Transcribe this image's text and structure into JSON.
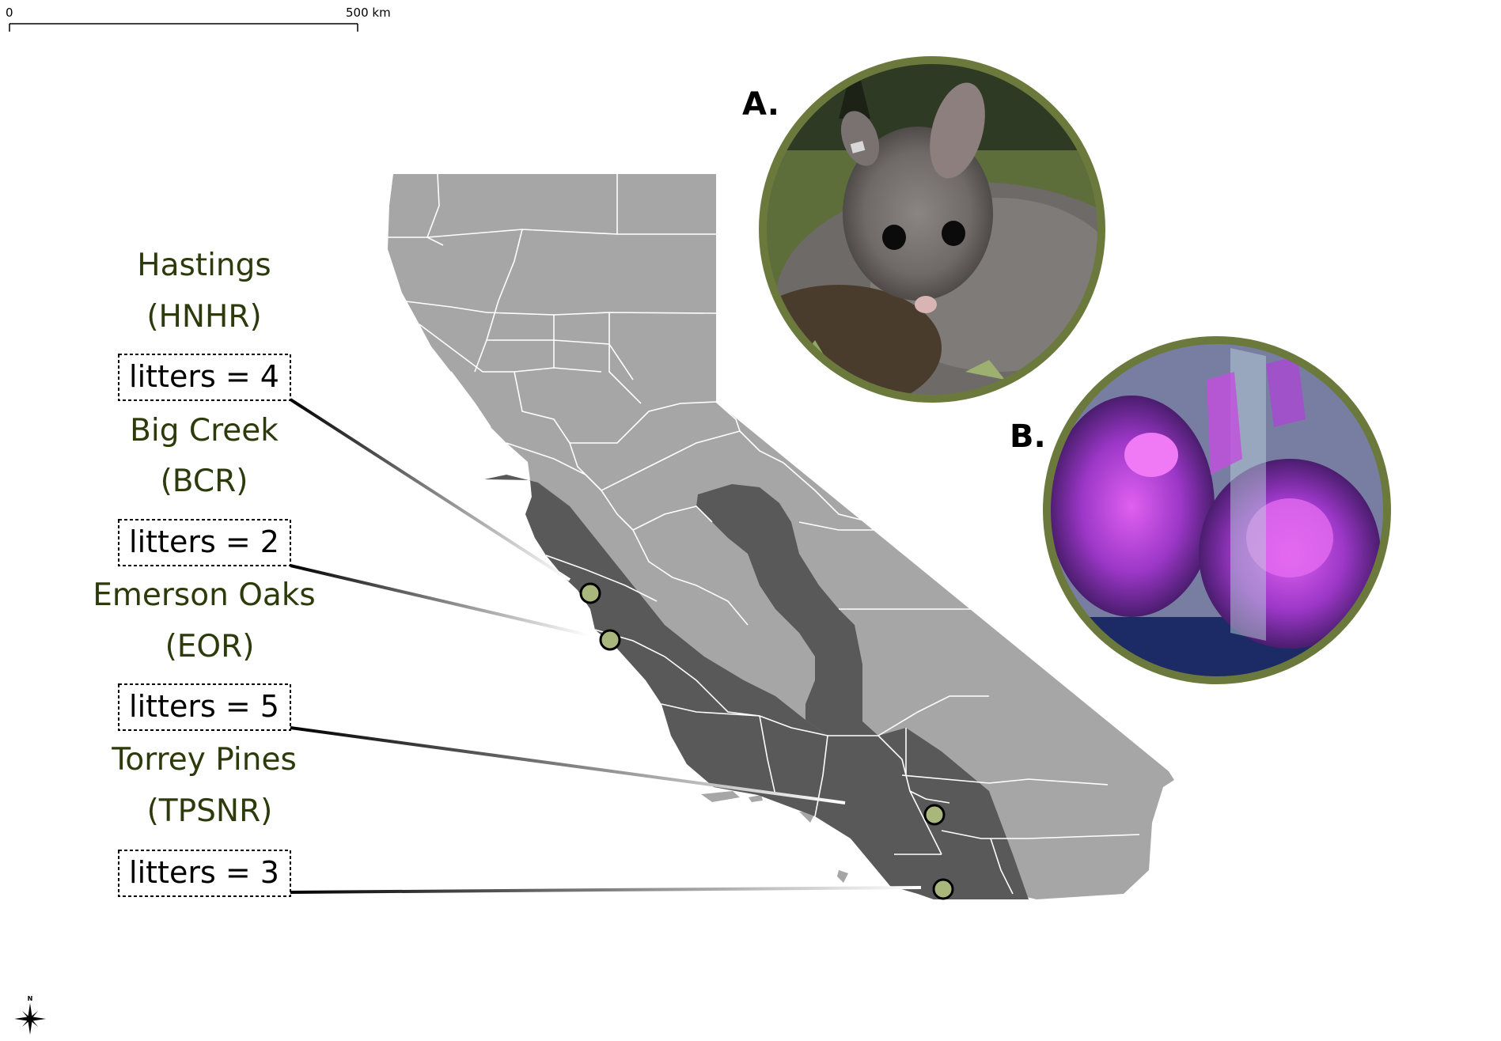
{
  "scale_bar": {
    "start_label": "0",
    "end_label": "500 km"
  },
  "compass": {
    "north_label": "N",
    "icon": "compass-rose-icon"
  },
  "panels": {
    "a": {
      "label": "A.",
      "content": "woodrat-photo"
    },
    "b": {
      "label": "B.",
      "content": "uv-fluorescence-photo"
    }
  },
  "colors": {
    "site_text": "#2d3a0b",
    "state_fill": "#a6a6a6",
    "range_fill": "#595959",
    "county_lines": "#ffffff",
    "site_marker": "#a9b67c",
    "photo_ring": "#6b7a3c"
  },
  "sites": [
    {
      "name": "Hastings",
      "code": "(HNHR)",
      "litters": "litters = 4"
    },
    {
      "name": "Big Creek",
      "code": "(BCR)",
      "litters": "litters = 2"
    },
    {
      "name": "Emerson Oaks",
      "code": "(EOR)",
      "litters": "litters = 5"
    },
    {
      "name": "Torrey Pines",
      "code": "(TPSNR)",
      "litters": "litters = 3"
    }
  ]
}
